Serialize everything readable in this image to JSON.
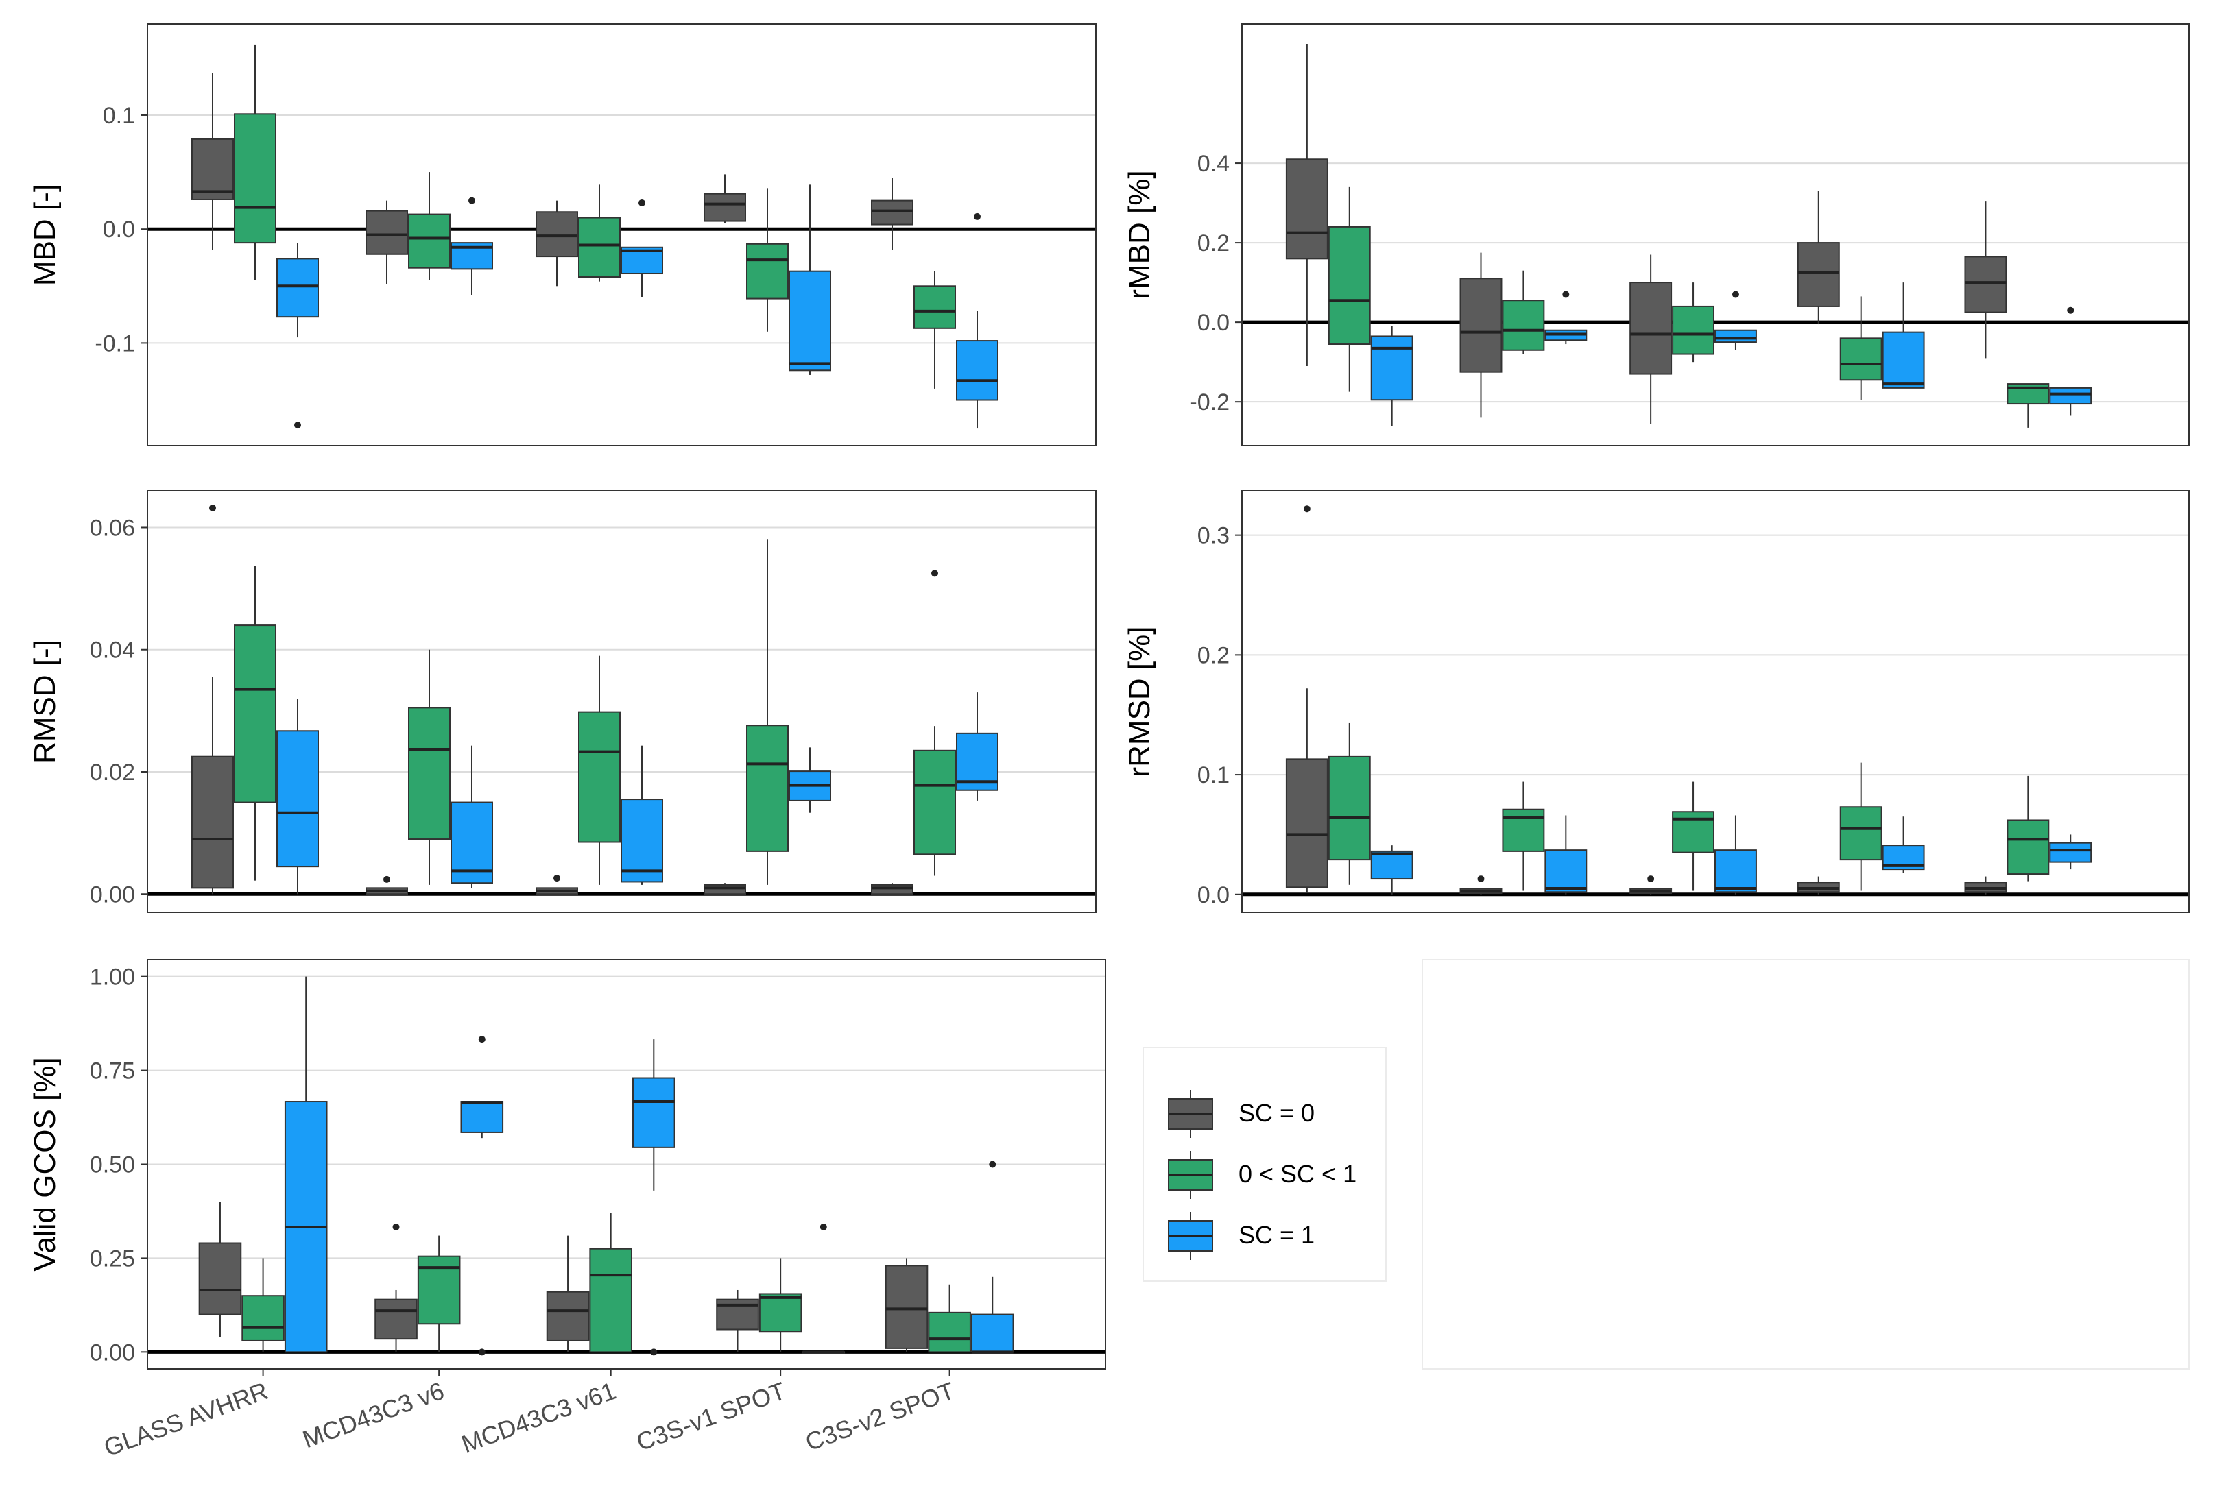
{
  "legend": {
    "position": "bottom-center",
    "entries": [
      {
        "key": "sc0",
        "label": "SC = 0"
      },
      {
        "key": "scmid",
        "label": "0 < SC < 1"
      },
      {
        "key": "sc1",
        "label": "SC = 1"
      }
    ]
  },
  "colors": {
    "sc0": "#5b5b5b",
    "scmid": "#2ea56c",
    "sc1": "#1a9df8"
  },
  "chart_data": [
    {
      "type": "box",
      "ylabel": "MBD [-]",
      "ylim": [
        -0.19,
        0.18
      ],
      "yticks": [
        -0.1,
        0.0,
        0.1
      ],
      "ytick_labels": [
        "-0.1",
        "0.0",
        "0.1"
      ],
      "zero_line": true,
      "categories": [
        "GLASS AVHRR",
        "MCD43C3 v6",
        "MCD43C3 v61",
        "C3S-v1 SPOT",
        "C3S-v2 SPOT"
      ],
      "series": [
        {
          "name": "SC = 0",
          "key": "sc0",
          "boxes": [
            {
              "lo": -0.018,
              "q1": 0.026,
              "med": 0.033,
              "q3": 0.079,
              "hi": 0.137,
              "out": []
            },
            {
              "lo": -0.048,
              "q1": -0.022,
              "med": -0.005,
              "q3": 0.016,
              "hi": 0.025,
              "out": []
            },
            {
              "lo": -0.05,
              "q1": -0.024,
              "med": -0.006,
              "q3": 0.015,
              "hi": 0.025,
              "out": []
            },
            {
              "lo": 0.005,
              "q1": 0.007,
              "med": 0.022,
              "q3": 0.031,
              "hi": 0.048,
              "out": []
            },
            {
              "lo": -0.018,
              "q1": 0.004,
              "med": 0.016,
              "q3": 0.025,
              "hi": 0.045,
              "out": []
            }
          ]
        },
        {
          "name": "0 < SC < 1",
          "key": "scmid",
          "boxes": [
            {
              "lo": -0.045,
              "q1": -0.012,
              "med": 0.019,
              "q3": 0.101,
              "hi": 0.162,
              "out": []
            },
            {
              "lo": -0.045,
              "q1": -0.034,
              "med": -0.008,
              "q3": 0.013,
              "hi": 0.05,
              "out": []
            },
            {
              "lo": -0.046,
              "q1": -0.042,
              "med": -0.014,
              "q3": 0.01,
              "hi": 0.039,
              "out": []
            },
            {
              "lo": -0.09,
              "q1": -0.061,
              "med": -0.027,
              "q3": -0.013,
              "hi": 0.036,
              "out": []
            },
            {
              "lo": -0.14,
              "q1": -0.087,
              "med": -0.072,
              "q3": -0.05,
              "hi": -0.037,
              "out": []
            }
          ]
        },
        {
          "name": "SC = 1",
          "key": "sc1",
          "boxes": [
            {
              "lo": -0.095,
              "q1": -0.077,
              "med": -0.05,
              "q3": -0.026,
              "hi": -0.012,
              "out": [
                -0.172
              ]
            },
            {
              "lo": -0.058,
              "q1": -0.035,
              "med": -0.016,
              "q3": -0.012,
              "hi": -0.012,
              "out": [
                0.025
              ]
            },
            {
              "lo": -0.06,
              "q1": -0.039,
              "med": -0.019,
              "q3": -0.016,
              "hi": -0.016,
              "out": [
                0.023
              ]
            },
            {
              "lo": -0.128,
              "q1": -0.124,
              "med": -0.118,
              "q3": -0.037,
              "hi": 0.039,
              "out": []
            },
            {
              "lo": -0.175,
              "q1": -0.15,
              "med": -0.133,
              "q3": -0.098,
              "hi": -0.072,
              "out": [
                0.011
              ]
            }
          ]
        }
      ]
    },
    {
      "type": "box",
      "ylabel": "rMBD [%]",
      "ylim": [
        -0.31,
        0.75
      ],
      "yticks": [
        -0.2,
        0.0,
        0.2,
        0.4
      ],
      "ytick_labels": [
        "-0.2",
        "0.0",
        "0.2",
        "0.4"
      ],
      "zero_line": true,
      "categories": [
        "GLASS AVHRR",
        "MCD43C3 v6",
        "MCD43C3 v61",
        "C3S-v1 SPOT",
        "C3S-v2 SPOT"
      ],
      "series": [
        {
          "name": "SC = 0",
          "key": "sc0",
          "boxes": [
            {
              "lo": -0.11,
              "q1": 0.16,
              "med": 0.225,
              "q3": 0.41,
              "hi": 0.7,
              "out": []
            },
            {
              "lo": -0.24,
              "q1": -0.125,
              "med": -0.025,
              "q3": 0.11,
              "hi": 0.175,
              "out": []
            },
            {
              "lo": -0.255,
              "q1": -0.13,
              "med": -0.03,
              "q3": 0.1,
              "hi": 0.17,
              "out": []
            },
            {
              "lo": -0.005,
              "q1": 0.04,
              "med": 0.125,
              "q3": 0.2,
              "hi": 0.33,
              "out": []
            },
            {
              "lo": -0.09,
              "q1": 0.025,
              "med": 0.1,
              "q3": 0.165,
              "hi": 0.305,
              "out": []
            }
          ]
        },
        {
          "name": "0 < SC < 1",
          "key": "scmid",
          "boxes": [
            {
              "lo": -0.175,
              "q1": -0.055,
              "med": 0.055,
              "q3": 0.24,
              "hi": 0.34,
              "out": []
            },
            {
              "lo": -0.08,
              "q1": -0.07,
              "med": -0.02,
              "q3": 0.055,
              "hi": 0.13,
              "out": []
            },
            {
              "lo": -0.1,
              "q1": -0.08,
              "med": -0.03,
              "q3": 0.04,
              "hi": 0.1,
              "out": []
            },
            {
              "lo": -0.195,
              "q1": -0.145,
              "med": -0.105,
              "q3": -0.04,
              "hi": 0.065,
              "out": []
            },
            {
              "lo": -0.265,
              "q1": -0.205,
              "med": -0.165,
              "q3": -0.155,
              "hi": -0.155,
              "out": []
            }
          ]
        },
        {
          "name": "SC = 1",
          "key": "sc1",
          "boxes": [
            {
              "lo": -0.26,
              "q1": -0.195,
              "med": -0.065,
              "q3": -0.035,
              "hi": -0.01,
              "out": []
            },
            {
              "lo": -0.055,
              "q1": -0.045,
              "med": -0.03,
              "q3": -0.02,
              "hi": -0.02,
              "out": [
                0.07
              ]
            },
            {
              "lo": -0.07,
              "q1": -0.05,
              "med": -0.04,
              "q3": -0.02,
              "hi": -0.02,
              "out": [
                0.07
              ]
            },
            {
              "lo": -0.165,
              "q1": -0.165,
              "med": -0.155,
              "q3": -0.025,
              "hi": 0.1,
              "out": []
            },
            {
              "lo": -0.235,
              "q1": -0.205,
              "med": -0.18,
              "q3": -0.165,
              "hi": -0.165,
              "out": [
                0.03
              ]
            }
          ]
        }
      ]
    },
    {
      "type": "box",
      "ylabel": "RMSD [-]",
      "ylim": [
        -0.003,
        0.066
      ],
      "yticks": [
        0.0,
        0.02,
        0.04,
        0.06
      ],
      "ytick_labels": [
        "0.00",
        "0.02",
        "0.04",
        "0.06"
      ],
      "zero_line": true,
      "categories": [
        "GLASS AVHRR",
        "MCD43C3 v6",
        "MCD43C3 v61",
        "C3S-v1 SPOT",
        "C3S-v2 SPOT"
      ],
      "series": [
        {
          "name": "SC = 0",
          "key": "sc0",
          "boxes": [
            {
              "lo": 0.0,
              "q1": 0.001,
              "med": 0.009,
              "q3": 0.0225,
              "hi": 0.0355,
              "out": [
                0.0632
              ]
            },
            {
              "lo": 0.0,
              "q1": 0.0,
              "med": 0.0005,
              "q3": 0.001,
              "hi": 0.001,
              "out": [
                0.0024
              ]
            },
            {
              "lo": 0.0,
              "q1": 0.0,
              "med": 0.0005,
              "q3": 0.001,
              "hi": 0.001,
              "out": [
                0.0026
              ]
            },
            {
              "lo": 0.0,
              "q1": 0.0,
              "med": 0.001,
              "q3": 0.0015,
              "hi": 0.0018,
              "out": []
            },
            {
              "lo": 0.0,
              "q1": 0.0,
              "med": 0.001,
              "q3": 0.0015,
              "hi": 0.0018,
              "out": []
            }
          ]
        },
        {
          "name": "0 < SC < 1",
          "key": "scmid",
          "boxes": [
            {
              "lo": 0.0022,
              "q1": 0.015,
              "med": 0.0335,
              "q3": 0.044,
              "hi": 0.0537,
              "out": []
            },
            {
              "lo": 0.0015,
              "q1": 0.009,
              "med": 0.0237,
              "q3": 0.0305,
              "hi": 0.04,
              "out": []
            },
            {
              "lo": 0.0015,
              "q1": 0.0085,
              "med": 0.0233,
              "q3": 0.0298,
              "hi": 0.039,
              "out": []
            },
            {
              "lo": 0.0015,
              "q1": 0.007,
              "med": 0.0213,
              "q3": 0.0276,
              "hi": 0.058,
              "out": []
            },
            {
              "lo": 0.003,
              "q1": 0.0065,
              "med": 0.0178,
              "q3": 0.0235,
              "hi": 0.0275,
              "out": [
                0.0525
              ]
            }
          ]
        },
        {
          "name": "SC = 1",
          "key": "sc1",
          "boxes": [
            {
              "lo": 0.0,
              "q1": 0.0045,
              "med": 0.0133,
              "q3": 0.0267,
              "hi": 0.032,
              "out": []
            },
            {
              "lo": 0.001,
              "q1": 0.0018,
              "med": 0.0038,
              "q3": 0.015,
              "hi": 0.0243,
              "out": []
            },
            {
              "lo": 0.0015,
              "q1": 0.002,
              "med": 0.0038,
              "q3": 0.0155,
              "hi": 0.0243,
              "out": []
            },
            {
              "lo": 0.0133,
              "q1": 0.0153,
              "med": 0.0178,
              "q3": 0.0201,
              "hi": 0.024,
              "out": []
            },
            {
              "lo": 0.0153,
              "q1": 0.017,
              "med": 0.0184,
              "q3": 0.0263,
              "hi": 0.033,
              "out": []
            }
          ]
        }
      ]
    },
    {
      "type": "box",
      "ylabel": "rRMSD [%]",
      "ylim": [
        -0.015,
        0.337
      ],
      "yticks": [
        0.0,
        0.1,
        0.2,
        0.3
      ],
      "ytick_labels": [
        "0.0",
        "0.1",
        "0.2",
        "0.3"
      ],
      "zero_line": true,
      "categories": [
        "GLASS AVHRR",
        "MCD43C3 v6",
        "MCD43C3 v61",
        "C3S-v1 SPOT",
        "C3S-v2 SPOT"
      ],
      "series": [
        {
          "name": "SC = 0",
          "key": "sc0",
          "boxes": [
            {
              "lo": 0.001,
              "q1": 0.006,
              "med": 0.05,
              "q3": 0.113,
              "hi": 0.172,
              "out": [
                0.322
              ]
            },
            {
              "lo": 0.0,
              "q1": 0.001,
              "med": 0.003,
              "q3": 0.005,
              "hi": 0.005,
              "out": [
                0.013
              ]
            },
            {
              "lo": 0.0,
              "q1": 0.001,
              "med": 0.003,
              "q3": 0.005,
              "hi": 0.005,
              "out": [
                0.013
              ]
            },
            {
              "lo": 0.0,
              "q1": 0.002,
              "med": 0.005,
              "q3": 0.01,
              "hi": 0.015,
              "out": []
            },
            {
              "lo": 0.0,
              "q1": 0.002,
              "med": 0.005,
              "q3": 0.01,
              "hi": 0.015,
              "out": []
            }
          ]
        },
        {
          "name": "0 < SC < 1",
          "key": "scmid",
          "boxes": [
            {
              "lo": 0.008,
              "q1": 0.029,
              "med": 0.064,
              "q3": 0.115,
              "hi": 0.143,
              "out": []
            },
            {
              "lo": 0.003,
              "q1": 0.036,
              "med": 0.064,
              "q3": 0.071,
              "hi": 0.094,
              "out": []
            },
            {
              "lo": 0.003,
              "q1": 0.035,
              "med": 0.063,
              "q3": 0.069,
              "hi": 0.094,
              "out": []
            },
            {
              "lo": 0.003,
              "q1": 0.029,
              "med": 0.055,
              "q3": 0.073,
              "hi": 0.11,
              "out": []
            },
            {
              "lo": 0.011,
              "q1": 0.017,
              "med": 0.046,
              "q3": 0.062,
              "hi": 0.099,
              "out": []
            }
          ]
        },
        {
          "name": "SC = 1",
          "key": "sc1",
          "boxes": [
            {
              "lo": 0.0,
              "q1": 0.013,
              "med": 0.034,
              "q3": 0.036,
              "hi": 0.041,
              "out": []
            },
            {
              "lo": 0.0,
              "q1": 0.002,
              "med": 0.005,
              "q3": 0.037,
              "hi": 0.066,
              "out": []
            },
            {
              "lo": 0.0,
              "q1": 0.002,
              "med": 0.005,
              "q3": 0.037,
              "hi": 0.066,
              "out": []
            },
            {
              "lo": 0.018,
              "q1": 0.021,
              "med": 0.024,
              "q3": 0.041,
              "hi": 0.065,
              "out": []
            },
            {
              "lo": 0.021,
              "q1": 0.027,
              "med": 0.037,
              "q3": 0.043,
              "hi": 0.05,
              "out": []
            }
          ]
        }
      ]
    },
    {
      "type": "box",
      "ylabel": "Valid GCOS [%]",
      "ylim": [
        -0.045,
        1.045
      ],
      "yticks": [
        0.0,
        0.25,
        0.5,
        0.75,
        1.0
      ],
      "ytick_labels": [
        "0.00",
        "0.25",
        "0.50",
        "0.75",
        "1.00"
      ],
      "zero_line": true,
      "categories": [
        "GLASS AVHRR",
        "MCD43C3 v6",
        "MCD43C3 v61",
        "C3S-v1 SPOT",
        "C3S-v2 SPOT"
      ],
      "series": [
        {
          "name": "SC = 0",
          "key": "sc0",
          "boxes": [
            {
              "lo": 0.04,
              "q1": 0.1,
              "med": 0.165,
              "q3": 0.29,
              "hi": 0.4,
              "out": []
            },
            {
              "lo": 0.0,
              "q1": 0.035,
              "med": 0.11,
              "q3": 0.14,
              "hi": 0.165,
              "out": [
                0.333
              ]
            },
            {
              "lo": 0.0,
              "q1": 0.03,
              "med": 0.11,
              "q3": 0.16,
              "hi": 0.31,
              "out": []
            },
            {
              "lo": 0.0,
              "q1": 0.06,
              "med": 0.125,
              "q3": 0.14,
              "hi": 0.165,
              "out": []
            },
            {
              "lo": 0.0,
              "q1": 0.01,
              "med": 0.115,
              "q3": 0.23,
              "hi": 0.25,
              "out": []
            }
          ]
        },
        {
          "name": "0 < SC < 1",
          "key": "scmid",
          "boxes": [
            {
              "lo": 0.0,
              "q1": 0.03,
              "med": 0.065,
              "q3": 0.15,
              "hi": 0.25,
              "out": []
            },
            {
              "lo": 0.0,
              "q1": 0.075,
              "med": 0.225,
              "q3": 0.255,
              "hi": 0.31,
              "out": []
            },
            {
              "lo": 0.0,
              "q1": 0.0,
              "med": 0.205,
              "q3": 0.275,
              "hi": 0.37,
              "out": []
            },
            {
              "lo": 0.0,
              "q1": 0.055,
              "med": 0.145,
              "q3": 0.155,
              "hi": 0.25,
              "out": []
            },
            {
              "lo": 0.0,
              "q1": 0.0,
              "med": 0.035,
              "q3": 0.105,
              "hi": 0.18,
              "out": []
            }
          ]
        },
        {
          "name": "SC = 1",
          "key": "sc1",
          "boxes": [
            {
              "lo": 0.0,
              "q1": 0.0,
              "med": 0.333,
              "q3": 0.667,
              "hi": 1.0,
              "out": []
            },
            {
              "lo": 0.57,
              "q1": 0.585,
              "med": 0.665,
              "q3": 0.667,
              "hi": 0.667,
              "out": [
                0.833,
                0.0
              ]
            },
            {
              "lo": 0.43,
              "q1": 0.545,
              "med": 0.667,
              "q3": 0.73,
              "hi": 0.833,
              "out": [
                0.0
              ]
            },
            {
              "lo": 0.0,
              "q1": 0.0,
              "med": 0.0,
              "q3": 0.0,
              "hi": 0.0,
              "out": [
                0.333
              ]
            },
            {
              "lo": 0.0,
              "q1": 0.0,
              "med": 0.0,
              "q3": 0.1,
              "hi": 0.2,
              "out": [
                0.5
              ]
            }
          ]
        }
      ]
    }
  ]
}
